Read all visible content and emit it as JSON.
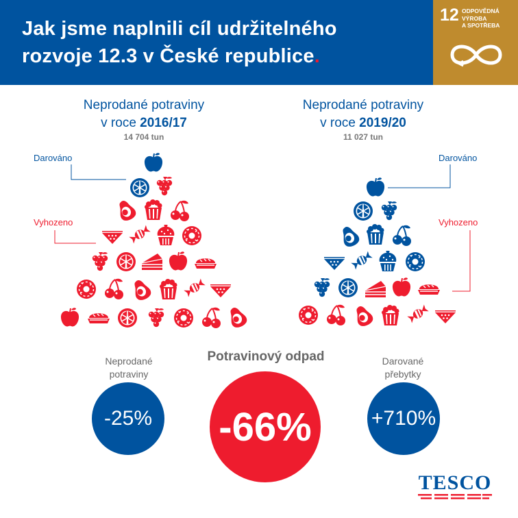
{
  "header": {
    "title_line1": "Jak jsme naplnili cíl udržitelného",
    "title_line2": "rozvoje 12.3 v České republice",
    "title_dot": "."
  },
  "sdg": {
    "number": "12",
    "text_line1": "ODPOVĚDNÁ",
    "text_line2": "VÝROBA",
    "text_line3": "A SPOTŘEBA",
    "color": "#bf8b2e"
  },
  "left": {
    "title_line1": "Neprodané potraviny",
    "title_prefix": "v roce ",
    "title_year": "2016/17",
    "subtitle": "14 704 tun",
    "donated_label": "Darováno",
    "wasted_label": "Vyhozeno"
  },
  "right": {
    "title_line1": "Neprodané potraviny",
    "title_prefix": "v roce ",
    "title_year": "2019/20",
    "subtitle": "11 027 tun",
    "donated_label": "Darováno",
    "wasted_label": "Vyhozeno"
  },
  "stats": {
    "unsold_label_line1": "Neprodané",
    "unsold_label_line2": "potraviny",
    "unsold_value": "-25%",
    "waste_label": "Potravinový odpad",
    "waste_value": "-66%",
    "donated_label_line1": "Darované",
    "donated_label_line2": "přebytky",
    "donated_value": "+710%"
  },
  "brand": {
    "name": "TESCO",
    "blue": "#00539f",
    "red": "#ee1c2e"
  },
  "icons": {
    "food_items": [
      "apple-icon",
      "orange-icon",
      "grapes-icon",
      "avocado-icon",
      "popcorn-icon",
      "cherries-icon",
      "watermelon-icon",
      "candy-icon",
      "cupcake-icon",
      "donut-icon",
      "cake-slice-icon",
      "pie-icon"
    ]
  }
}
